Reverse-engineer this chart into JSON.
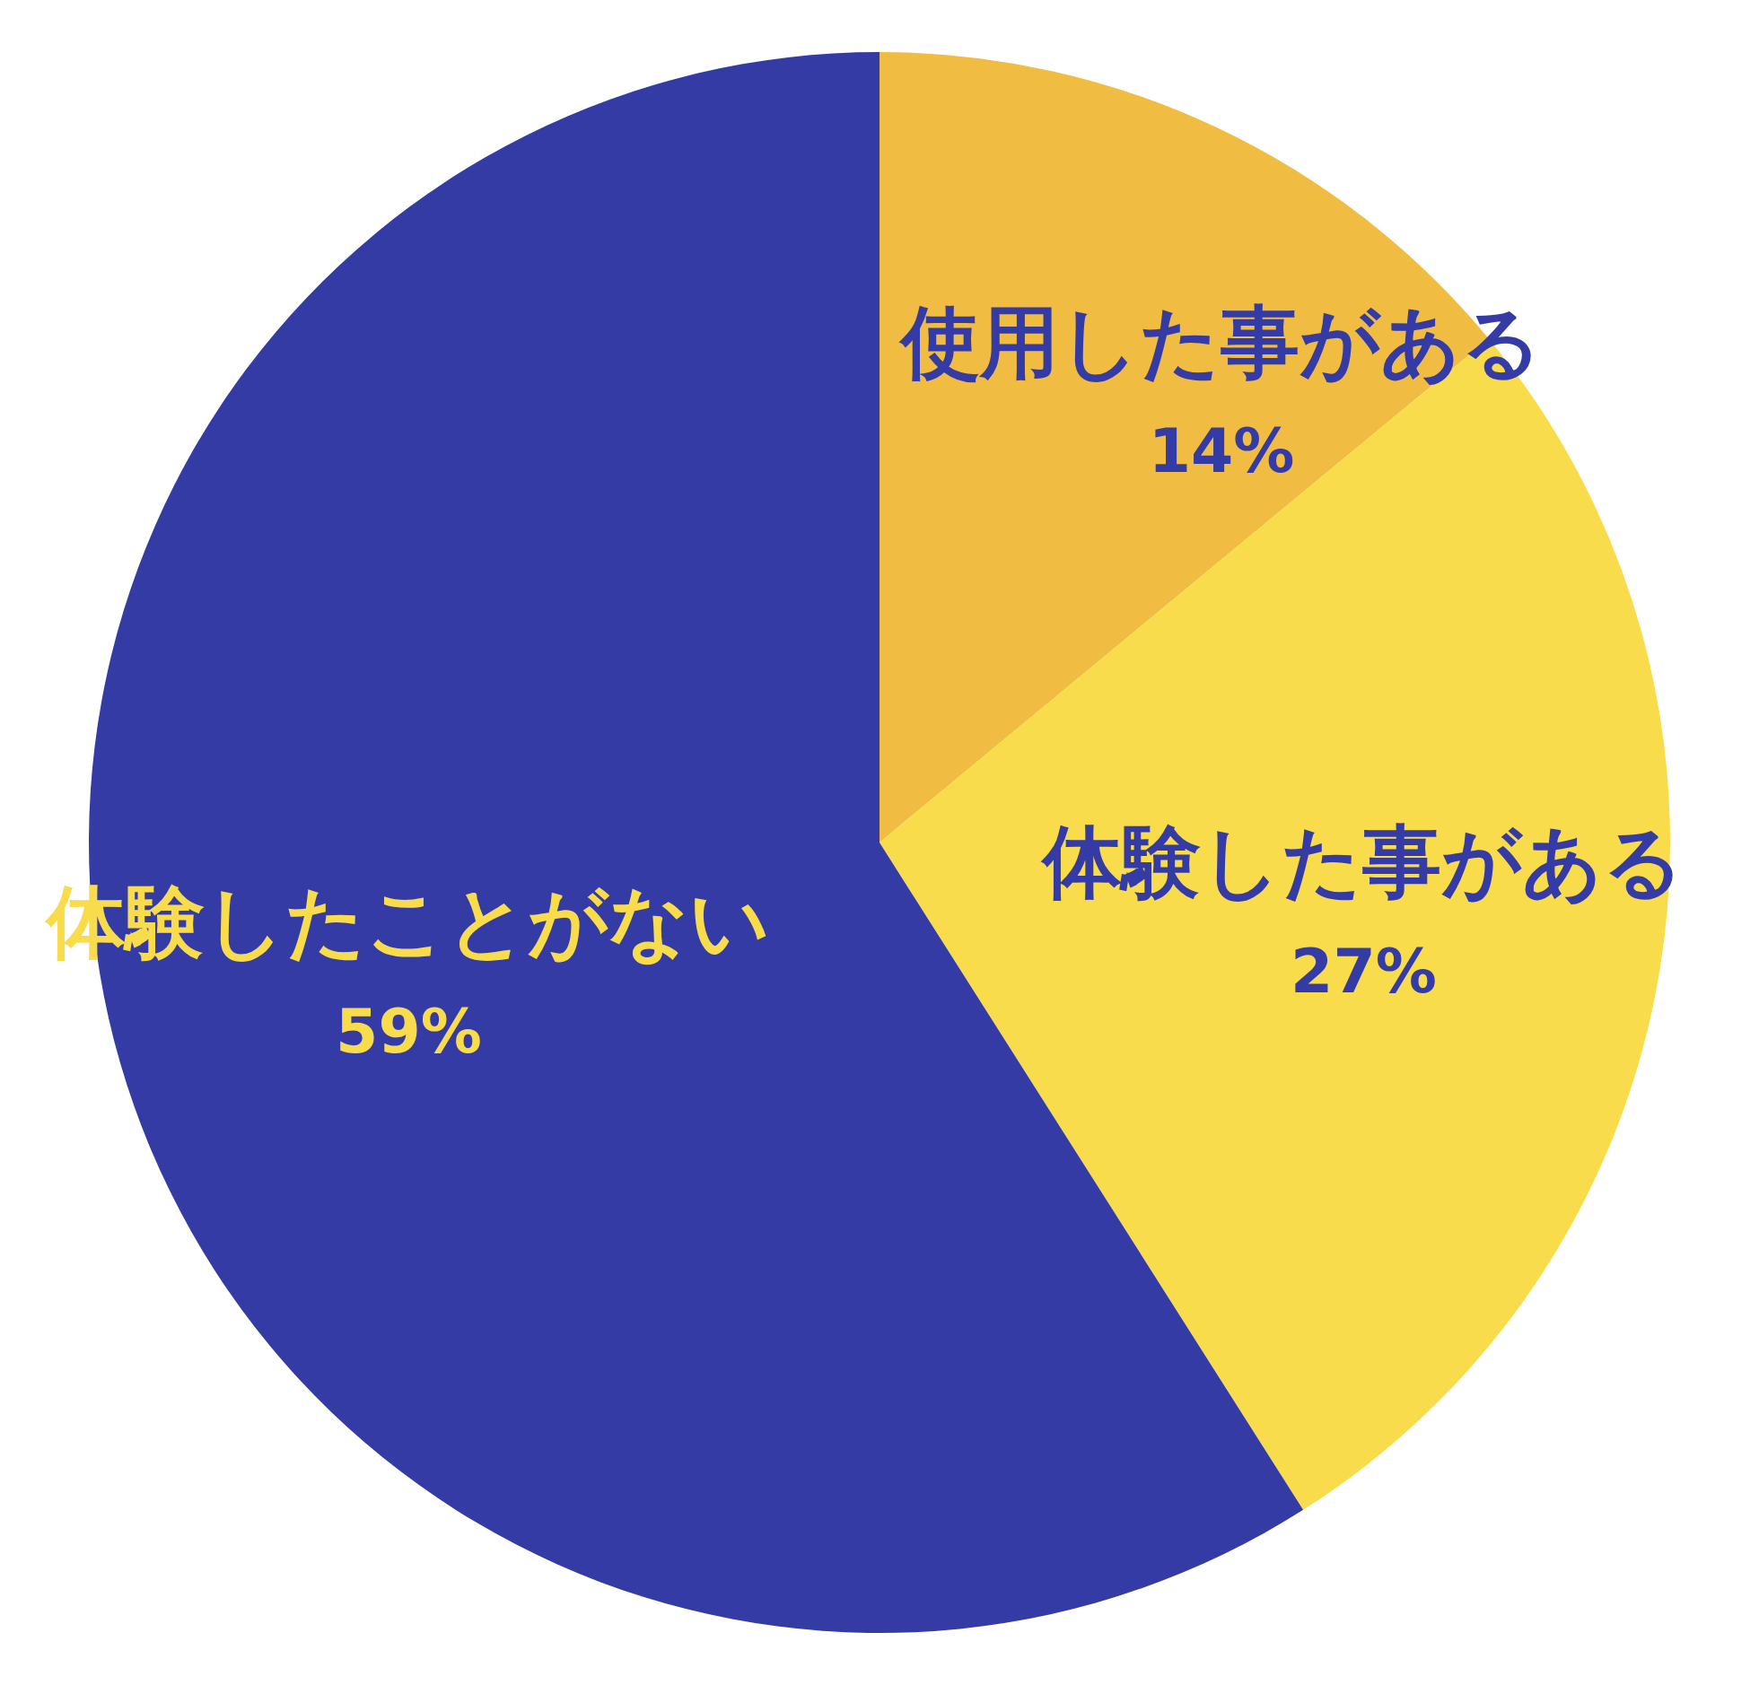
{
  "chart_data": {
    "type": "pie",
    "categories": [
      "使用した事がある",
      "体験した事がある",
      "体験したことがない"
    ],
    "values": [
      14,
      27,
      59
    ],
    "colors": [
      "#f0bd42",
      "#f9dc4c",
      "#343ba5"
    ],
    "value_labels": [
      "14%",
      "27%",
      "59%"
    ],
    "legend": false
  }
}
